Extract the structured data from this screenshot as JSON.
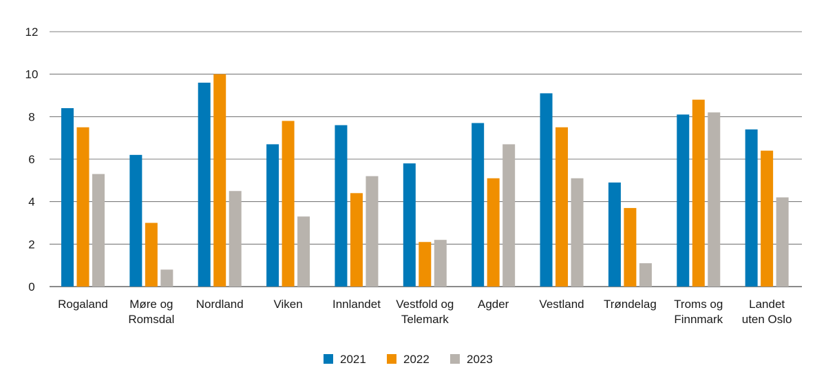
{
  "chart_data": {
    "type": "bar",
    "title": "",
    "xlabel": "",
    "ylabel": "",
    "ylim": [
      0,
      12
    ],
    "yticks": [
      0,
      2,
      4,
      6,
      8,
      10,
      12
    ],
    "grid": true,
    "legend_position": "bottom-center",
    "categories": [
      [
        "Rogaland"
      ],
      [
        "Møre og",
        "Romsdal"
      ],
      [
        "Nordland"
      ],
      [
        "Viken"
      ],
      [
        "Innlandet"
      ],
      [
        "Vestfold og",
        "Telemark"
      ],
      [
        "Agder"
      ],
      [
        "Vestland"
      ],
      [
        "Trøndelag"
      ],
      [
        "Troms og",
        "Finnmark"
      ],
      [
        "Landet",
        "uten Oslo"
      ]
    ],
    "series": [
      {
        "name": "2021",
        "color": "#0079b8",
        "values": [
          8.4,
          6.2,
          9.6,
          6.7,
          7.6,
          5.8,
          7.7,
          9.1,
          4.9,
          8.1,
          7.4
        ]
      },
      {
        "name": "2022",
        "color": "#f08f00",
        "values": [
          7.5,
          3.0,
          10.0,
          7.8,
          4.4,
          2.1,
          5.1,
          7.5,
          3.7,
          8.8,
          6.4
        ]
      },
      {
        "name": "2023",
        "color": "#b8b3ad",
        "values": [
          5.3,
          0.8,
          4.5,
          3.3,
          5.2,
          2.2,
          6.7,
          5.1,
          1.1,
          8.2,
          4.2
        ]
      }
    ]
  }
}
